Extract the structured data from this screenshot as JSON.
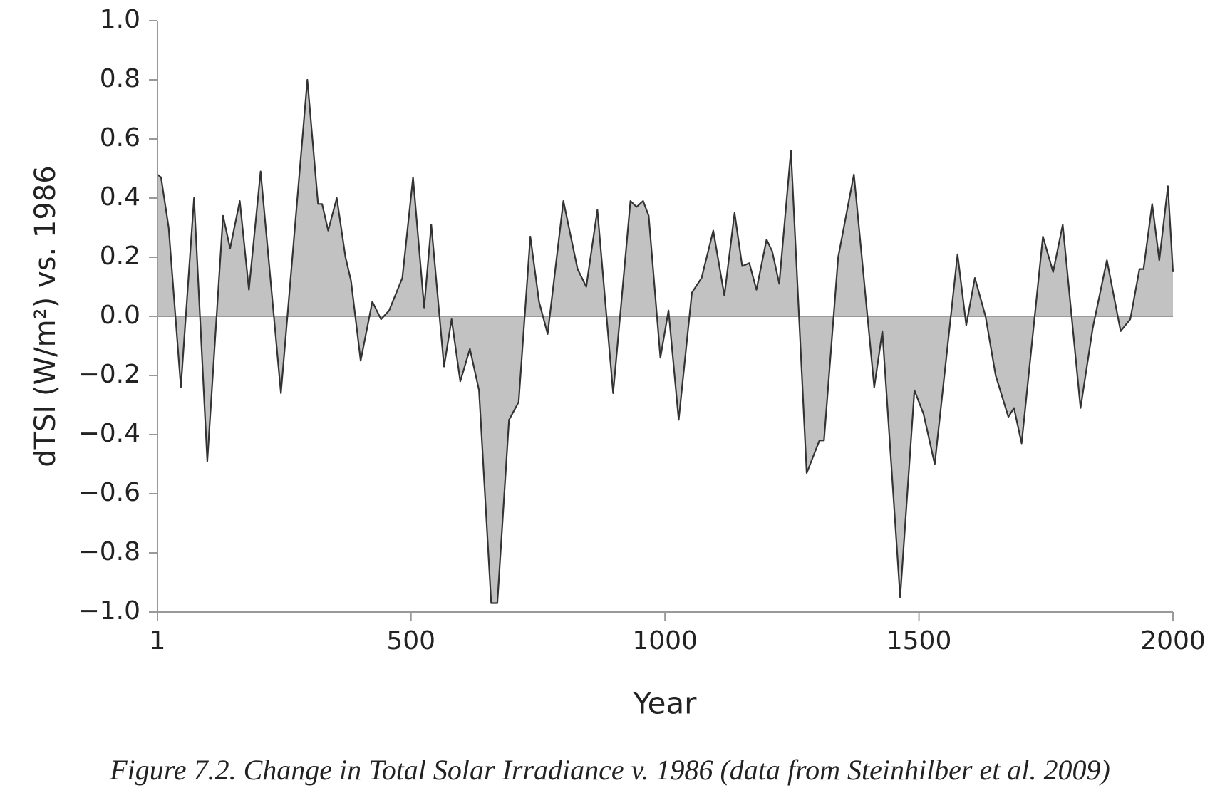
{
  "chart_data": {
    "type": "area",
    "caption": "Figure 7.2. Change in Total Solar Irradiance v. 1986 (data from Steinhilber et al. 2009)",
    "xlabel": "Year",
    "ylabel": "dTSI (W/m²) vs. 1986",
    "x": [
      1,
      8,
      23,
      47,
      73,
      99,
      130,
      144,
      163,
      181,
      204,
      244,
      296,
      317,
      325,
      337,
      354,
      371,
      382,
      401,
      424,
      441,
      457,
      483,
      504,
      526,
      540,
      565,
      580,
      597,
      616,
      634,
      658,
      670,
      693,
      712,
      735,
      752,
      769,
      800,
      828,
      845,
      867,
      898,
      932,
      944,
      957,
      968,
      991,
      1007,
      1027,
      1053,
      1072,
      1095,
      1117,
      1137,
      1152,
      1166,
      1180,
      1200,
      1211,
      1225,
      1248,
      1279,
      1304,
      1313,
      1341,
      1372,
      1412,
      1428,
      1463,
      1491,
      1509,
      1531,
      1576,
      1593,
      1610,
      1631,
      1651,
      1676,
      1687,
      1702,
      1744,
      1764,
      1783,
      1818,
      1842,
      1870,
      1897,
      1916,
      1934,
      1942,
      1959,
      1973,
      1990,
      2000
    ],
    "values": [
      0.48,
      0.47,
      0.3,
      -0.24,
      0.4,
      -0.49,
      0.34,
      0.23,
      0.39,
      0.09,
      0.49,
      -0.26,
      0.8,
      0.38,
      0.38,
      0.29,
      0.4,
      0.2,
      0.12,
      -0.15,
      0.05,
      -0.01,
      0.02,
      0.13,
      0.47,
      0.03,
      0.31,
      -0.17,
      -0.01,
      -0.22,
      -0.11,
      -0.25,
      -0.97,
      -0.97,
      -0.35,
      -0.29,
      0.27,
      0.05,
      -0.06,
      0.39,
      0.16,
      0.1,
      0.36,
      -0.26,
      0.39,
      0.37,
      0.39,
      0.34,
      -0.14,
      0.02,
      -0.35,
      0.08,
      0.13,
      0.29,
      0.07,
      0.35,
      0.17,
      0.18,
      0.09,
      0.26,
      0.22,
      0.11,
      0.56,
      -0.53,
      -0.42,
      -0.42,
      0.2,
      0.48,
      -0.24,
      -0.05,
      -0.95,
      -0.25,
      -0.33,
      -0.5,
      0.21,
      -0.03,
      0.13,
      0.0,
      -0.2,
      -0.34,
      -0.31,
      -0.43,
      0.27,
      0.15,
      0.31,
      -0.31,
      -0.04,
      0.19,
      -0.05,
      -0.01,
      0.16,
      0.16,
      0.38,
      0.19,
      0.44,
      0.15
    ],
    "color": "#c2c2c2",
    "line_color": "#333333",
    "xlim": [
      1,
      2000
    ],
    "xticks": [
      1,
      500,
      1000,
      1500,
      2000
    ],
    "ylim": [
      -1,
      1
    ],
    "yticks": [
      {
        "value": -1,
        "label": "−1.0"
      },
      {
        "value": -0.8,
        "label": "−0.8"
      },
      {
        "value": -0.6,
        "label": "−0.6"
      },
      {
        "value": -0.4,
        "label": "−0.4"
      },
      {
        "value": -0.2,
        "label": "−0.2"
      },
      {
        "value": 0,
        "label": "0.0"
      },
      0.2,
      0.4,
      0.6,
      0.8,
      {
        "value": 1,
        "label": "1.0"
      }
    ]
  }
}
